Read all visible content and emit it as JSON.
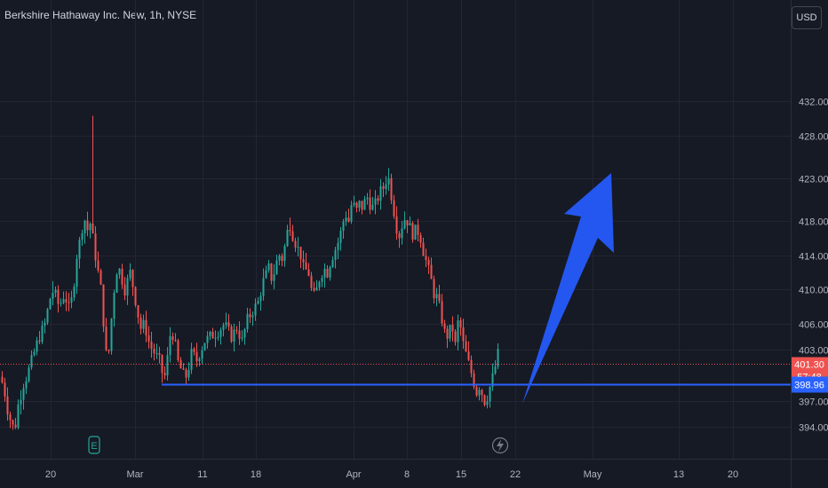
{
  "header": {
    "title": "Berkshire Hathaway Inc. New, 1h, NYSE"
  },
  "toolbar": {
    "currency": "USD"
  },
  "colors": {
    "background": "#161a25",
    "up": "#26a69a",
    "down": "#ef5350",
    "support_line": "#2962ff",
    "arrow": "#2457f0",
    "grid": "#232632",
    "axis_text": "#b2b5be"
  },
  "icons": {
    "earnings": "E",
    "dividend": "lightning-icon"
  },
  "chart_data": {
    "type": "candlestick",
    "title": "Berkshire Hathaway Inc. New, 1h, NYSE",
    "y_ticks": [
      "432.00",
      "428.00",
      "423.00",
      "418.00",
      "414.00",
      "410.00",
      "406.00",
      "403.00",
      "397.00",
      "394.00"
    ],
    "x_ticks": [
      "20",
      "Mar",
      "11",
      "18",
      "Apr",
      "8",
      "15",
      "22",
      "May",
      "13",
      "20"
    ],
    "price_labels": {
      "last_price": "401.30",
      "countdown": "57:48",
      "support_price": "398.96"
    },
    "last_price": 401.3,
    "support_level": 398.96,
    "grid": true,
    "price_path": [
      [
        0,
        399.8
      ],
      [
        4,
        398.5
      ],
      [
        8,
        396.0
      ],
      [
        12,
        394.5
      ],
      [
        16,
        393.5
      ],
      [
        20,
        396.5
      ],
      [
        26,
        399.0
      ],
      [
        30,
        400.0
      ],
      [
        36,
        402.0
      ],
      [
        42,
        404.0
      ],
      [
        50,
        406.0
      ],
      [
        56,
        409.0
      ],
      [
        60,
        410.0
      ],
      [
        66,
        408.0
      ],
      [
        72,
        409.5
      ],
      [
        78,
        407.5
      ],
      [
        82,
        410.0
      ],
      [
        86,
        414.0
      ],
      [
        90,
        416.0
      ],
      [
        94,
        418.5
      ],
      [
        98,
        417.0
      ],
      [
        102,
        418.0
      ],
      [
        104,
        416.0
      ],
      [
        106,
        414.5
      ],
      [
        110,
        412.0
      ],
      [
        114,
        409.5
      ],
      [
        118,
        403.0
      ],
      [
        121,
        401.5
      ],
      [
        124,
        405.5
      ],
      [
        128,
        410.0
      ],
      [
        132,
        413.0
      ],
      [
        136,
        411.5
      ],
      [
        140,
        410.0
      ],
      [
        146,
        412.0
      ],
      [
        150,
        410.0
      ],
      [
        154,
        407.5
      ],
      [
        158,
        405.5
      ],
      [
        162,
        406.0
      ],
      [
        168,
        403.5
      ],
      [
        174,
        402.5
      ],
      [
        180,
        401.5
      ],
      [
        184,
        399.2
      ],
      [
        188,
        402.0
      ],
      [
        192,
        405.5
      ],
      [
        196,
        404.0
      ],
      [
        200,
        401.5
      ],
      [
        204,
        400.5
      ],
      [
        208,
        399.5
      ],
      [
        212,
        401.0
      ],
      [
        216,
        403.0
      ],
      [
        220,
        401.5
      ],
      [
        224,
        402.5
      ],
      [
        230,
        404.0
      ],
      [
        236,
        404.5
      ],
      [
        244,
        405.0
      ],
      [
        252,
        406.0
      ],
      [
        260,
        404.5
      ],
      [
        266,
        405.5
      ],
      [
        272,
        404.0
      ],
      [
        278,
        406.5
      ],
      [
        284,
        407.5
      ],
      [
        290,
        408.5
      ],
      [
        296,
        411.0
      ],
      [
        302,
        412.5
      ],
      [
        306,
        411.0
      ],
      [
        310,
        413.0
      ],
      [
        314,
        414.0
      ],
      [
        318,
        413.5
      ],
      [
        322,
        416.5
      ],
      [
        326,
        417.5
      ],
      [
        330,
        416.0
      ],
      [
        334,
        415.0
      ],
      [
        338,
        414.0
      ],
      [
        342,
        412.0
      ],
      [
        346,
        412.5
      ],
      [
        350,
        410.0
      ],
      [
        354,
        409.0
      ],
      [
        358,
        411.0
      ],
      [
        364,
        412.5
      ],
      [
        368,
        412.0
      ],
      [
        372,
        413.5
      ],
      [
        376,
        414.5
      ],
      [
        380,
        415.5
      ],
      [
        384,
        417.0
      ],
      [
        388,
        419.0
      ],
      [
        392,
        418.0
      ],
      [
        396,
        420.5
      ],
      [
        400,
        419.0
      ],
      [
        404,
        420.0
      ],
      [
        408,
        419.5
      ],
      [
        412,
        421.0
      ],
      [
        416,
        420.0
      ],
      [
        420,
        419.5
      ],
      [
        424,
        420.5
      ],
      [
        428,
        421.5
      ],
      [
        432,
        422.0
      ],
      [
        436,
        423.5
      ],
      [
        440,
        421.0
      ],
      [
        444,
        418.5
      ],
      [
        448,
        416.0
      ],
      [
        452,
        417.5
      ],
      [
        456,
        418.5
      ],
      [
        460,
        417.5
      ],
      [
        464,
        416.5
      ],
      [
        468,
        417.0
      ],
      [
        472,
        416.5
      ],
      [
        476,
        414.5
      ],
      [
        480,
        413.0
      ],
      [
        484,
        411.5
      ],
      [
        488,
        409.5
      ],
      [
        492,
        409.0
      ],
      [
        496,
        407.0
      ],
      [
        500,
        405.0
      ],
      [
        504,
        404.5
      ],
      [
        508,
        406.0
      ],
      [
        512,
        403.5
      ],
      [
        516,
        407.0
      ],
      [
        520,
        404.0
      ],
      [
        524,
        402.5
      ],
      [
        528,
        401.0
      ],
      [
        532,
        399.5
      ],
      [
        536,
        398.0
      ],
      [
        540,
        399.0
      ],
      [
        544,
        396.8
      ],
      [
        548,
        397.5
      ],
      [
        552,
        399.0
      ],
      [
        556,
        400.5
      ],
      [
        560,
        402.5
      ],
      [
        563,
        401.3
      ]
    ]
  }
}
